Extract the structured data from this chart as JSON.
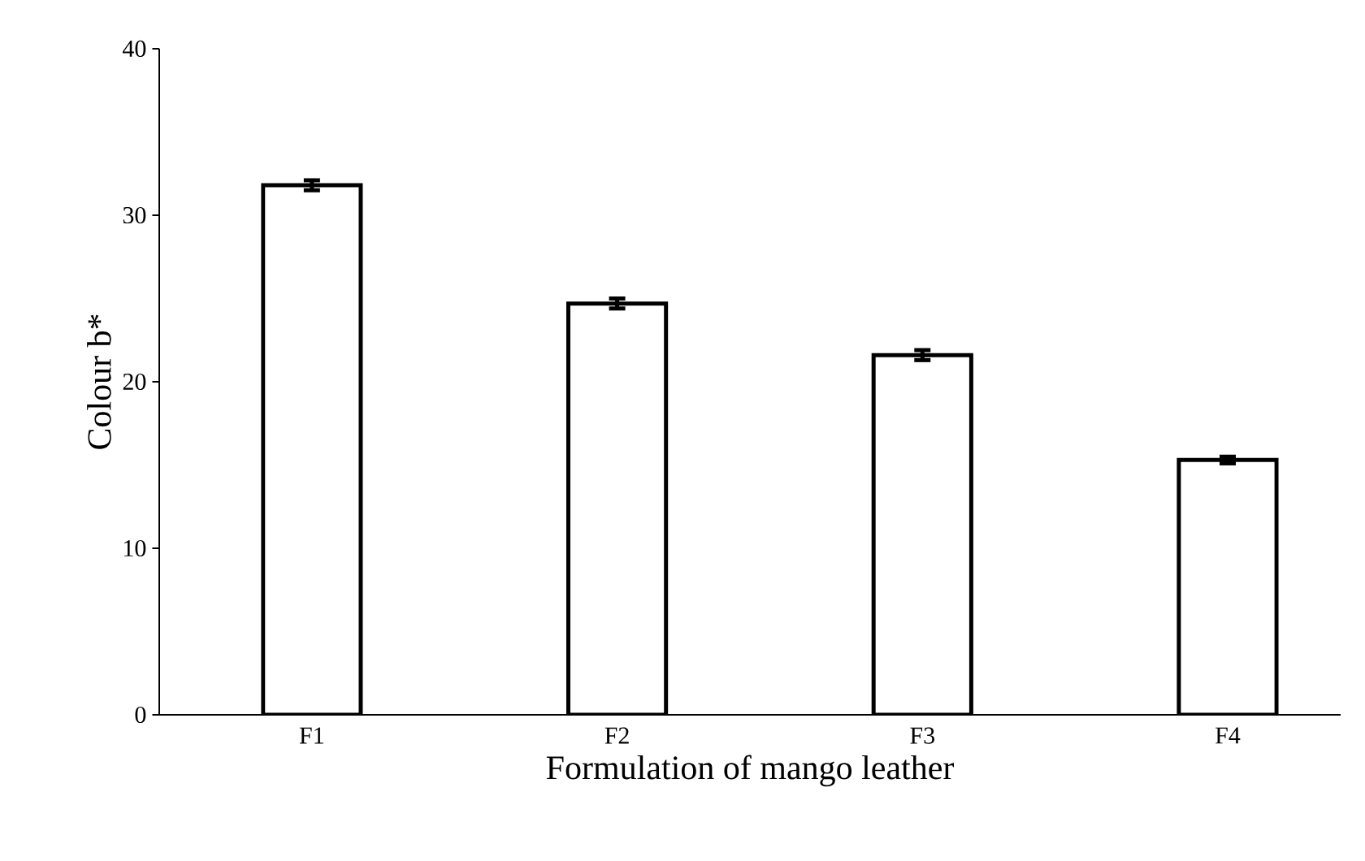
{
  "chart_data": {
    "type": "bar",
    "categories": [
      "F1",
      "F2",
      "F3",
      "F4"
    ],
    "values": [
      31.8,
      24.7,
      21.6,
      15.3
    ],
    "errors": [
      0.3,
      0.3,
      0.3,
      0.2
    ],
    "color": "#ffffff",
    "xlabel": "Formulation of mango leather",
    "ylabel": "Colour b*",
    "ylim": [
      0,
      40
    ],
    "yticks": [
      0,
      10,
      20,
      30,
      40
    ],
    "grid": false
  }
}
